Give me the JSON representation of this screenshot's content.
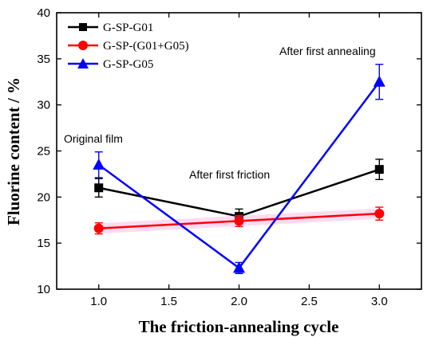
{
  "chart_data": {
    "type": "line",
    "title": "",
    "xlabel": "The friction-annealing cycle",
    "ylabel": "Fluorine content / %",
    "xlim": [
      0.7,
      3.3
    ],
    "ylim": [
      10,
      40
    ],
    "x_ticks": [
      "1.0",
      "1.5",
      "2.0",
      "2.5",
      "3.0"
    ],
    "y_ticks": [
      "10",
      "15",
      "20",
      "25",
      "30",
      "35",
      "40"
    ],
    "x": [
      1.0,
      2.0,
      3.0
    ],
    "legend_position": "top-left",
    "grid": false,
    "series": [
      {
        "name": "G-SP-G01",
        "values": [
          21.0,
          17.9,
          23.0
        ],
        "errors": [
          1.0,
          0.8,
          1.1
        ],
        "color": "#000000",
        "marker": "square"
      },
      {
        "name": "G-SP-(G01+G05)",
        "values": [
          16.6,
          17.4,
          18.2
        ],
        "errors": [
          0.6,
          0.6,
          0.7
        ],
        "color": "#ff0000",
        "marker": "circle"
      },
      {
        "name": "G-SP-G05",
        "values": [
          23.5,
          12.3,
          32.5
        ],
        "errors": [
          1.4,
          0.6,
          1.9
        ],
        "color": "#0000ff",
        "marker": "triangle"
      }
    ],
    "annotations": [
      {
        "text": "Original film"
      },
      {
        "text": "After first friction"
      },
      {
        "text": "After first annealing"
      }
    ]
  }
}
